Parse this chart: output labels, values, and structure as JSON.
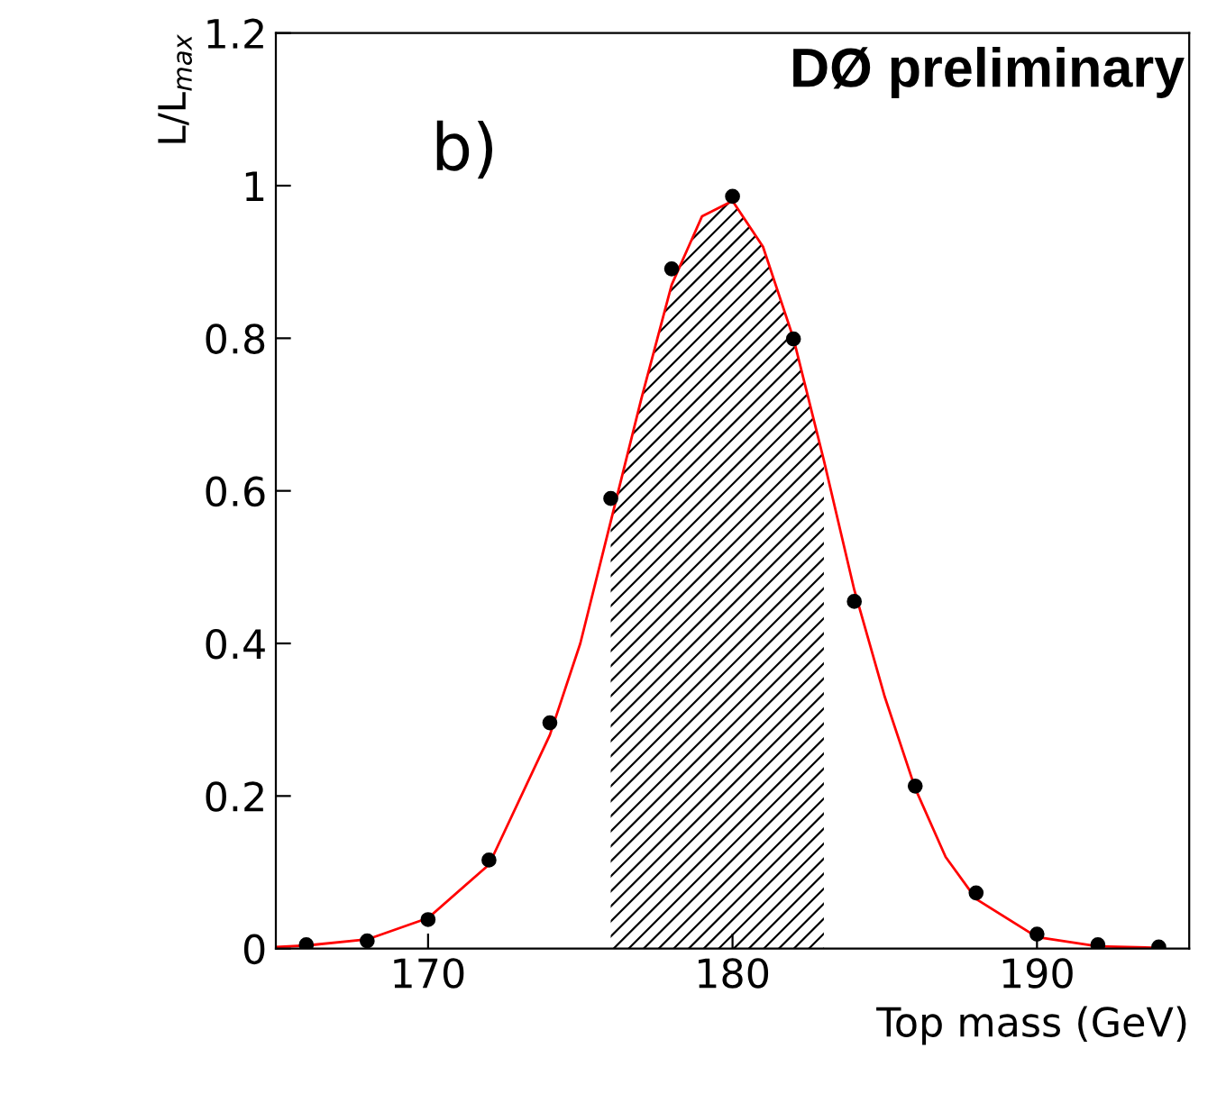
{
  "chart_data": {
    "type": "scatter",
    "xlabel": "Top mass (GeV)",
    "ylabel": "L/L$_{max}$",
    "annotations": [
      "DØ preliminary",
      "b)"
    ],
    "xlim": [
      165,
      195
    ],
    "xticks": [
      170,
      180,
      190
    ],
    "ylim": [
      0,
      1.2
    ],
    "yticks": [
      0,
      0.2,
      0.4,
      0.6,
      0.8,
      1,
      1.2
    ],
    "grid": false,
    "series": [
      {
        "type": "area",
        "color": "#000000",
        "x": [
          176,
          177,
          178,
          179,
          180,
          181,
          182,
          183
        ],
        "values": [
          0.56,
          0.72,
          0.87,
          0.96,
          0.98,
          0.92,
          0.8,
          0.64
        ]
      },
      {
        "type": "line",
        "color": "#ff0000",
        "x": [
          165,
          166,
          168,
          170,
          172,
          174,
          175,
          176,
          177,
          178,
          179,
          180,
          181,
          182,
          183,
          184,
          185,
          186,
          187,
          188,
          190,
          192,
          194
        ],
        "values": [
          0.002,
          0.004,
          0.012,
          0.04,
          0.11,
          0.28,
          0.4,
          0.56,
          0.72,
          0.87,
          0.96,
          0.98,
          0.92,
          0.8,
          0.64,
          0.47,
          0.33,
          0.21,
          0.12,
          0.065,
          0.015,
          0.003,
          0.001
        ]
      },
      {
        "marker": "circle",
        "color": "#000000",
        "x": [
          166,
          168,
          170,
          172,
          174,
          176,
          178,
          180,
          182,
          184,
          186,
          188,
          190,
          192,
          194
        ],
        "values": [
          0.005,
          0.01,
          0.038,
          0.116,
          0.296,
          0.59,
          0.891,
          0.986,
          0.799,
          0.455,
          0.213,
          0.073,
          0.019,
          0.005,
          0.002
        ]
      }
    ]
  }
}
